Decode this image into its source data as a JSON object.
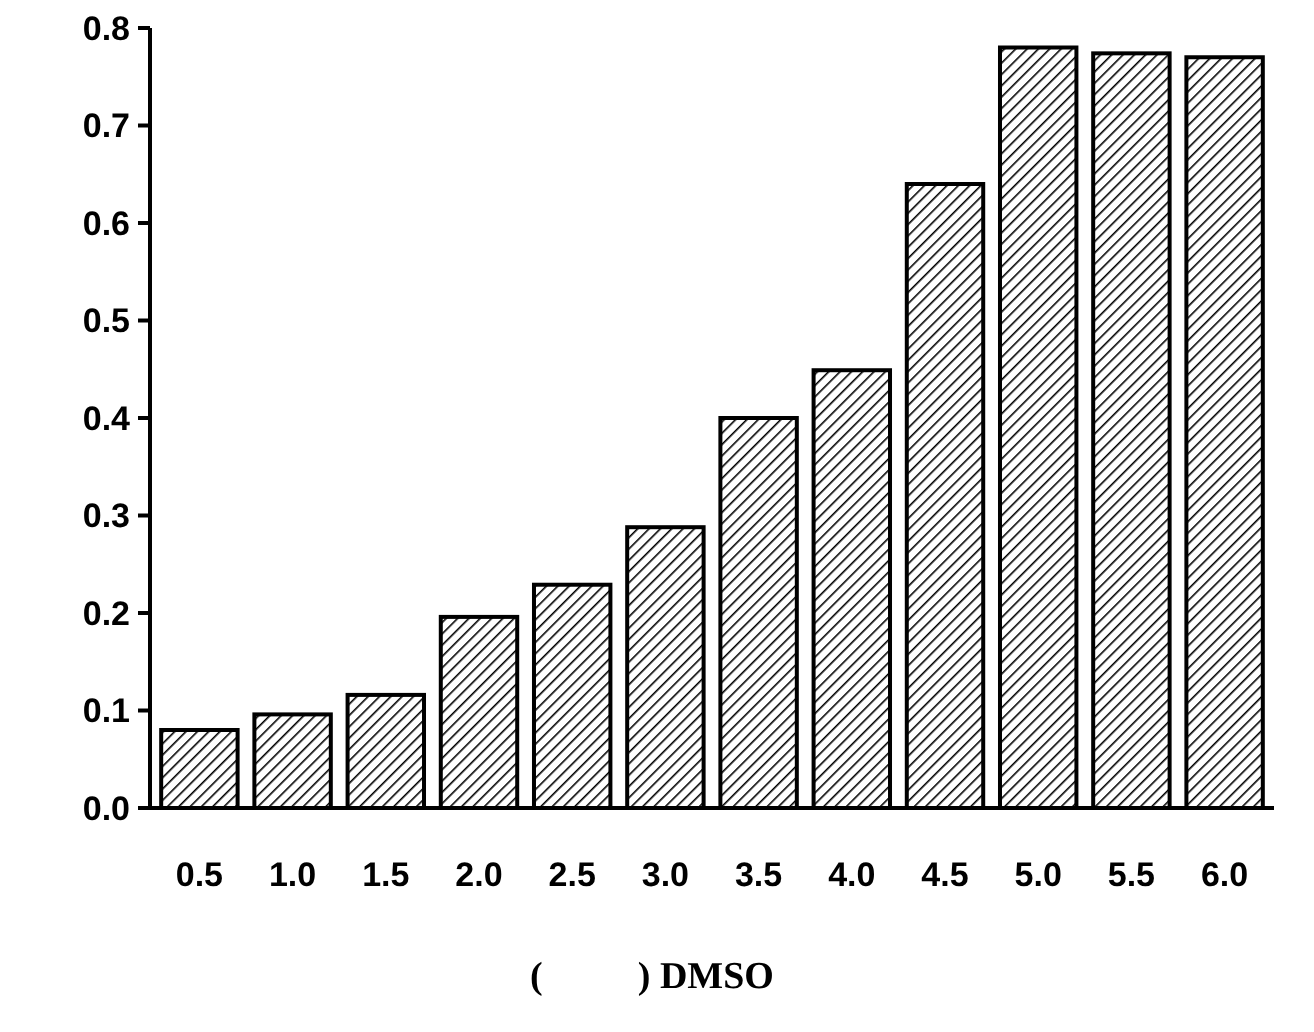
{
  "chart_data": {
    "type": "bar",
    "xlabel": "(          ) DMSO",
    "categories": [
      "0.5",
      "1.0",
      "1.5",
      "2.0",
      "2.5",
      "3.0",
      "3.5",
      "4.0",
      "4.5",
      "5.0",
      "5.5",
      "6.0"
    ],
    "values": [
      0.08,
      0.096,
      0.116,
      0.196,
      0.229,
      0.288,
      0.4,
      0.449,
      0.64,
      0.78,
      0.774,
      0.77
    ],
    "color": "#000000",
    "ylim": [
      0,
      0.8
    ],
    "yticks": [
      {
        "value": 0,
        "label": "0.0"
      },
      0.1,
      0.2,
      0.3,
      0.4,
      0.5,
      0.6,
      0.7,
      0.8
    ],
    "grid": false
  }
}
